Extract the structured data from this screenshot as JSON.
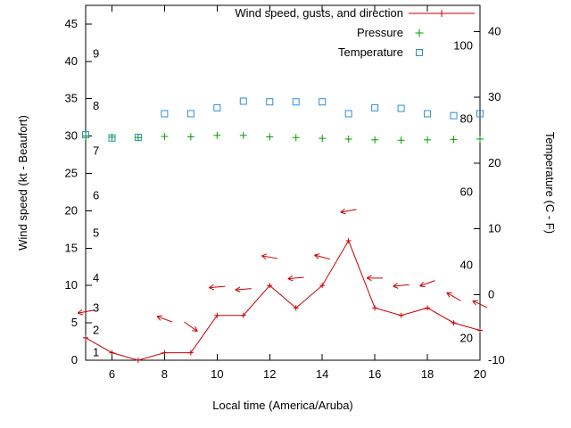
{
  "chart_data": {
    "type": "line",
    "title": "",
    "xlabel": "Local time (America/Aruba)",
    "ylabel_left": "Wind speed (kt - Beaufort)",
    "ylabel_right": "Temperature (C - F)",
    "legend": [
      {
        "label": "Wind speed, gusts, and direction",
        "marker": "line-point"
      },
      {
        "label": "Pressure",
        "marker": "plus"
      },
      {
        "label": "Temperature",
        "marker": "square"
      }
    ],
    "colors": {
      "wind": "#c80000",
      "pressure": "#00a000",
      "temperature": "#2b8fd0",
      "axis": "#000000",
      "background": "#ffffff"
    },
    "x": [
      5,
      6,
      7,
      8,
      9,
      10,
      11,
      12,
      13,
      14,
      15,
      16,
      17,
      18,
      19,
      20
    ],
    "wind_speed_kt": [
      3,
      1,
      0,
      1,
      1,
      6,
      6,
      10,
      7,
      10,
      16,
      7,
      6,
      7,
      5,
      4
    ],
    "pressure_inhg": [
      30.0,
      29.85,
      29.8,
      29.95,
      29.9,
      30.1,
      30.1,
      29.9,
      29.8,
      29.7,
      29.6,
      29.5,
      29.45,
      29.5,
      29.55,
      29.6
    ],
    "temperature_c": [
      24.3,
      23.8,
      23.9,
      27.5,
      27.5,
      28.4,
      29.4,
      29.3,
      29.3,
      29.3,
      27.5,
      28.4,
      28.3,
      27.5,
      27.2,
      27.5
    ],
    "gusts": [
      {
        "x": 5,
        "kt": 6.5,
        "angle_deg": 190
      },
      {
        "x": 8,
        "kt": 5.5,
        "angle_deg": 160
      },
      {
        "x": 9,
        "kt": 4.5,
        "angle_deg": -35
      },
      {
        "x": 10,
        "kt": 9.8,
        "angle_deg": 185
      },
      {
        "x": 11,
        "kt": 9.5,
        "angle_deg": 185
      },
      {
        "x": 12,
        "kt": 13.8,
        "angle_deg": 170
      },
      {
        "x": 13,
        "kt": 11.0,
        "angle_deg": 185
      },
      {
        "x": 14,
        "kt": 13.8,
        "angle_deg": 165
      },
      {
        "x": 15,
        "kt": 20.0,
        "angle_deg": 190
      },
      {
        "x": 16,
        "kt": 11.0,
        "angle_deg": 180
      },
      {
        "x": 17,
        "kt": 10.0,
        "angle_deg": 185
      },
      {
        "x": 18,
        "kt": 10.3,
        "angle_deg": 200
      },
      {
        "x": 19,
        "kt": 8.5,
        "angle_deg": 150
      },
      {
        "x": 20,
        "kt": 7.5,
        "angle_deg": 155
      }
    ],
    "axes": {
      "x_range": [
        5,
        20
      ],
      "y_left_range": [
        0,
        47.5
      ],
      "x_ticks": [
        {
          "v": 6,
          "label": "6"
        },
        {
          "v": 8,
          "label": "8"
        },
        {
          "v": 10,
          "label": "10"
        },
        {
          "v": 12,
          "label": "12"
        },
        {
          "v": 14,
          "label": "14"
        },
        {
          "v": 16,
          "label": "16"
        },
        {
          "v": 18,
          "label": "18"
        },
        {
          "v": 20,
          "label": "20"
        }
      ],
      "y_left_ticks": [
        {
          "v": 0,
          "label": "0"
        },
        {
          "v": 5,
          "label": "5"
        },
        {
          "v": 10,
          "label": "10"
        },
        {
          "v": 15,
          "label": "15"
        },
        {
          "v": 20,
          "label": "20"
        },
        {
          "v": 25,
          "label": "25"
        },
        {
          "v": 30,
          "label": "30"
        },
        {
          "v": 35,
          "label": "35"
        },
        {
          "v": 40,
          "label": "40"
        },
        {
          "v": 45,
          "label": "45"
        }
      ],
      "beaufort_labels": [
        {
          "kt": 1,
          "label": "1"
        },
        {
          "kt": 4,
          "label": "2"
        },
        {
          "kt": 7,
          "label": "3"
        },
        {
          "kt": 11,
          "label": "4"
        },
        {
          "kt": 17,
          "label": "5"
        },
        {
          "kt": 22,
          "label": "6"
        },
        {
          "kt": 28,
          "label": "7"
        },
        {
          "kt": 34,
          "label": "8"
        },
        {
          "kt": 41,
          "label": "9"
        }
      ],
      "y_right_ticks_c": [
        {
          "c": -10,
          "label": "-10"
        },
        {
          "c": 0,
          "label": "0"
        },
        {
          "c": 10,
          "label": "10"
        },
        {
          "c": 20,
          "label": "20"
        },
        {
          "c": 30,
          "label": "30"
        },
        {
          "c": 40,
          "label": "40"
        }
      ],
      "fahrenheit_labels": [
        {
          "f": 20,
          "label": "20"
        },
        {
          "f": 40,
          "label": "40"
        },
        {
          "f": 60,
          "label": "60"
        },
        {
          "f": 80,
          "label": "80"
        },
        {
          "f": 100,
          "label": "100"
        }
      ]
    }
  }
}
